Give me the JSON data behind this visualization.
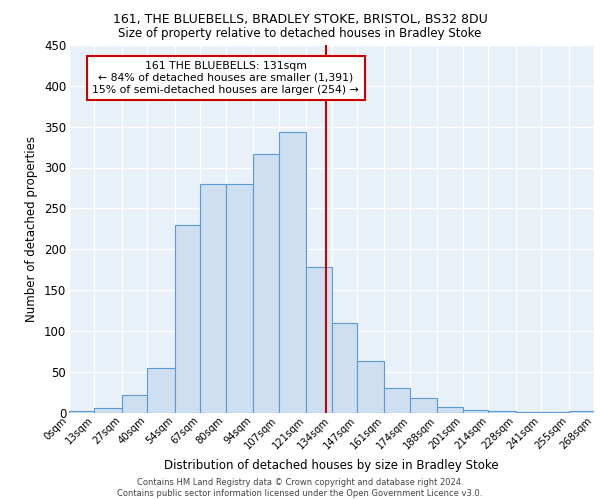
{
  "title1": "161, THE BLUEBELLS, BRADLEY STOKE, BRISTOL, BS32 8DU",
  "title2": "Size of property relative to detached houses in Bradley Stoke",
  "xlabel": "Distribution of detached houses by size in Bradley Stoke",
  "ylabel": "Number of detached properties",
  "bin_labels": [
    "0sqm",
    "13sqm",
    "27sqm",
    "40sqm",
    "54sqm",
    "67sqm",
    "80sqm",
    "94sqm",
    "107sqm",
    "121sqm",
    "134sqm",
    "147sqm",
    "161sqm",
    "174sqm",
    "188sqm",
    "201sqm",
    "214sqm",
    "228sqm",
    "241sqm",
    "255sqm",
    "268sqm"
  ],
  "bin_edges": [
    0,
    13,
    27,
    40,
    54,
    67,
    80,
    94,
    107,
    121,
    134,
    147,
    161,
    174,
    188,
    201,
    214,
    228,
    241,
    255,
    268
  ],
  "counts": [
    2,
    5,
    22,
    55,
    230,
    280,
    280,
    317,
    343,
    178,
    110,
    63,
    30,
    18,
    7,
    3,
    2,
    1,
    1,
    2
  ],
  "property_value": 131,
  "bar_facecolor": "#cddff0",
  "bar_edgecolor": "#5b9bd5",
  "vline_color": "#cc0000",
  "annotation_line1": "161 THE BLUEBELLS: 131sqm",
  "annotation_line2": "← 84% of detached houses are smaller (1,391)",
  "annotation_line3": "15% of semi-detached houses are larger (254) →",
  "annotation_box_edgecolor": "#cc0000",
  "footer_text": "Contains HM Land Registry data © Crown copyright and database right 2024.\nContains public sector information licensed under the Open Government Licence v3.0.",
  "ylim": [
    0,
    450
  ],
  "yticks": [
    0,
    50,
    100,
    150,
    200,
    250,
    300,
    350,
    400,
    450
  ],
  "axes_facecolor": "#e8f0f8",
  "grid_color": "#ffffff"
}
